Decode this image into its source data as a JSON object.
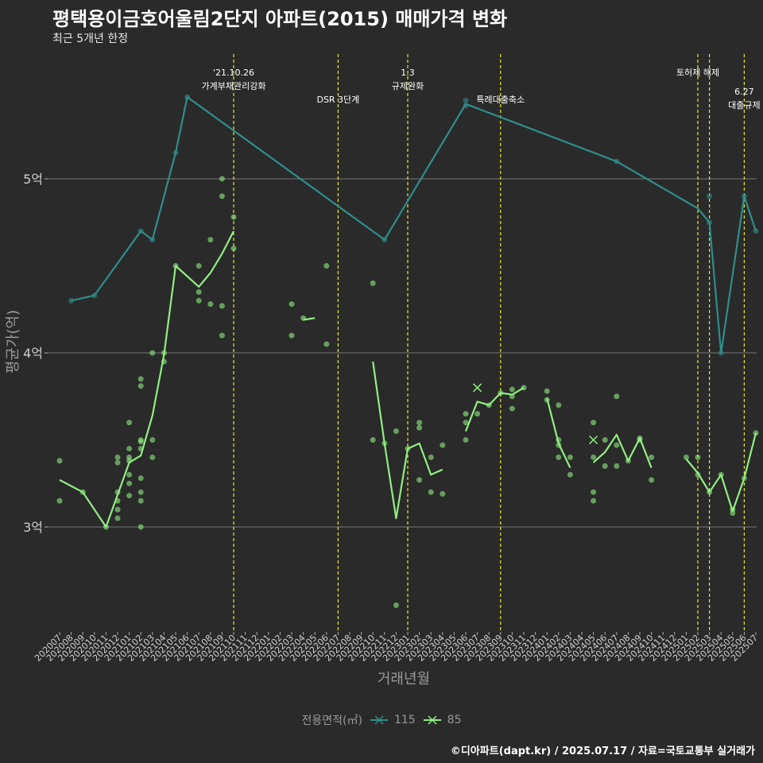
{
  "chart_data": {
    "type": "line",
    "title": "평택용이금호어울림2단지 아파트(2015) 매매가격 변화",
    "subtitle": "최근 5개년 한정",
    "xlabel": "거래년월",
    "ylabel": "평균가(억)",
    "caption": "©디아파트(dapt.kr) / 2025.07.17 / 자료=국토교통부 실거래가",
    "legend_title": "전용면적(㎡)",
    "grid": true,
    "categories": [
      "202007",
      "202008",
      "202009",
      "202010",
      "202011",
      "202012",
      "202101",
      "202102",
      "202103",
      "202104",
      "202105",
      "202106",
      "202107",
      "202108",
      "202109",
      "202110",
      "202111",
      "202112",
      "202201",
      "202202",
      "202203",
      "202204",
      "202205",
      "202206",
      "202207",
      "202208",
      "202209",
      "202210",
      "202211",
      "202212",
      "202301",
      "202302",
      "202303",
      "202304",
      "202305",
      "202306",
      "202307",
      "202308",
      "202309",
      "202310",
      "202311",
      "202312",
      "202401",
      "202402",
      "202403",
      "202404",
      "202405",
      "202406",
      "202407",
      "202408",
      "202409",
      "202410",
      "202411",
      "202412",
      "202501",
      "202502",
      "202503",
      "202504",
      "202505",
      "202506",
      "202507"
    ],
    "y_ticks": [
      {
        "value": 3,
        "label": "3억"
      },
      {
        "value": 4,
        "label": "4억"
      },
      {
        "value": 5,
        "label": "5억"
      }
    ],
    "ylim": [
      2.4,
      5.9
    ],
    "series": [
      {
        "name": "115",
        "color": "#2e8e8a",
        "line": [
          [
            "202008",
            4.3
          ],
          [
            "202010",
            4.33
          ],
          [
            "202102",
            4.7
          ],
          [
            "202103",
            4.65
          ],
          [
            "202105",
            5.15
          ],
          [
            "202106",
            5.47
          ],
          [
            "202211",
            4.65
          ],
          [
            "202306",
            5.43
          ],
          [
            "202407",
            5.1
          ],
          [
            "202502",
            4.83
          ],
          [
            "202503",
            4.75
          ],
          [
            "202504",
            4.0
          ],
          [
            "202506",
            4.9
          ],
          [
            "202507",
            4.7
          ]
        ],
        "points": [
          [
            "202008",
            4.3
          ],
          [
            "202010",
            4.33
          ],
          [
            "202102",
            4.7
          ],
          [
            "202103",
            4.65
          ],
          [
            "202105",
            5.15
          ],
          [
            "202106",
            5.47
          ],
          [
            "202211",
            4.65
          ],
          [
            "202306",
            5.45
          ],
          [
            "202306",
            5.42
          ],
          [
            "202407",
            5.1
          ],
          [
            "202503",
            4.9
          ],
          [
            "202503",
            4.75
          ],
          [
            "202504",
            4.0
          ],
          [
            "202506",
            4.9
          ],
          [
            "202507",
            4.7
          ]
        ]
      },
      {
        "name": "85",
        "color": "#90ee80",
        "line": [
          [
            "202007",
            3.27
          ],
          [
            "202009",
            3.2
          ],
          [
            "202011",
            3.0
          ],
          [
            "202101",
            3.37
          ],
          [
            "202102",
            3.41
          ],
          [
            "202103",
            3.64
          ],
          [
            "202104",
            3.99
          ],
          [
            "202105",
            4.5
          ],
          [
            "202107",
            4.38
          ],
          [
            "202108",
            4.46
          ],
          [
            "202109",
            4.57
          ],
          [
            "202110",
            4.7
          ],
          null,
          [
            "202204",
            4.19
          ],
          [
            "202205",
            4.2
          ],
          null,
          [
            "202210",
            3.95
          ],
          [
            "202211",
            3.48
          ],
          [
            "202212",
            3.05
          ],
          [
            "202301",
            3.45
          ],
          [
            "202302",
            3.48
          ],
          [
            "202303",
            3.3
          ],
          [
            "202304",
            3.33
          ],
          null,
          [
            "202306",
            3.55
          ],
          [
            "202307",
            3.72
          ],
          [
            "202308",
            3.7
          ],
          [
            "202309",
            3.77
          ],
          [
            "202310",
            3.76
          ],
          [
            "202311",
            3.8
          ],
          null,
          [
            "202401",
            3.74
          ],
          [
            "202402",
            3.48
          ],
          [
            "202403",
            3.34
          ],
          null,
          [
            "202405",
            3.37
          ],
          [
            "202406",
            3.43
          ],
          [
            "202407",
            3.53
          ],
          [
            "202408",
            3.38
          ],
          [
            "202409",
            3.51
          ],
          [
            "202410",
            3.34
          ],
          null,
          [
            "202501",
            3.39
          ],
          [
            "202502",
            3.31
          ],
          [
            "202503",
            3.2
          ],
          [
            "202504",
            3.3
          ],
          [
            "202505",
            3.09
          ],
          [
            "202506",
            3.28
          ],
          [
            "202507",
            3.54
          ]
        ],
        "points": [
          [
            "202007",
            3.38
          ],
          [
            "202007",
            3.15
          ],
          [
            "202009",
            3.2
          ],
          [
            "202011",
            3.0
          ],
          [
            "202012",
            3.05
          ],
          [
            "202012",
            3.1
          ],
          [
            "202012",
            3.15
          ],
          [
            "202012",
            3.2
          ],
          [
            "202012",
            3.37
          ],
          [
            "202012",
            3.4
          ],
          [
            "202101",
            3.6
          ],
          [
            "202101",
            3.45
          ],
          [
            "202101",
            3.4
          ],
          [
            "202101",
            3.38
          ],
          [
            "202101",
            3.3
          ],
          [
            "202101",
            3.25
          ],
          [
            "202101",
            3.18
          ],
          [
            "202102",
            3.85
          ],
          [
            "202102",
            3.81
          ],
          [
            "202102",
            3.5
          ],
          [
            "202102",
            3.49
          ],
          [
            "202102",
            3.45
          ],
          [
            "202102",
            3.28
          ],
          [
            "202102",
            3.2
          ],
          [
            "202102",
            3.15
          ],
          [
            "202102",
            3.0
          ],
          [
            "202103",
            4.0
          ],
          [
            "202103",
            3.5
          ],
          [
            "202103",
            3.4
          ],
          [
            "202104",
            4.0
          ],
          [
            "202104",
            3.95
          ],
          [
            "202105",
            4.5
          ],
          [
            "202107",
            4.5
          ],
          [
            "202107",
            4.35
          ],
          [
            "202107",
            4.3
          ],
          [
            "202108",
            4.65
          ],
          [
            "202108",
            4.28
          ],
          [
            "202109",
            5.0
          ],
          [
            "202109",
            4.9
          ],
          [
            "202109",
            4.27
          ],
          [
            "202109",
            4.1
          ],
          [
            "202110",
            4.78
          ],
          [
            "202110",
            4.6
          ],
          [
            "202203",
            4.28
          ],
          [
            "202203",
            4.1
          ],
          [
            "202204",
            4.2
          ],
          [
            "202206",
            4.5
          ],
          [
            "202206",
            4.05
          ],
          [
            "202210",
            4.4
          ],
          [
            "202210",
            3.5
          ],
          [
            "202211",
            3.48
          ],
          [
            "202212",
            3.55
          ],
          [
            "202212",
            2.55
          ],
          [
            "202301",
            3.45
          ],
          [
            "202302",
            3.6
          ],
          [
            "202302",
            3.57
          ],
          [
            "202302",
            3.27
          ],
          [
            "202303",
            3.4
          ],
          [
            "202303",
            3.2
          ],
          [
            "202304",
            3.47
          ],
          [
            "202304",
            3.19
          ],
          [
            "202306",
            3.65
          ],
          [
            "202306",
            3.6
          ],
          [
            "202306",
            3.5
          ],
          [
            "202307",
            3.65
          ],
          [
            "202308",
            3.7
          ],
          [
            "202309",
            3.77
          ],
          [
            "202310",
            3.79
          ],
          [
            "202310",
            3.75
          ],
          [
            "202310",
            3.68
          ],
          [
            "202311",
            3.8
          ],
          [
            "202401",
            3.78
          ],
          [
            "202401",
            3.73
          ],
          [
            "202402",
            3.7
          ],
          [
            "202402",
            3.5
          ],
          [
            "202402",
            3.47
          ],
          [
            "202402",
            3.4
          ],
          [
            "202403",
            3.4
          ],
          [
            "202403",
            3.3
          ],
          [
            "202405",
            3.6
          ],
          [
            "202405",
            3.4
          ],
          [
            "202405",
            3.2
          ],
          [
            "202405",
            3.15
          ],
          [
            "202406",
            3.5
          ],
          [
            "202406",
            3.35
          ],
          [
            "202407",
            3.75
          ],
          [
            "202407",
            3.47
          ],
          [
            "202407",
            3.35
          ],
          [
            "202408",
            3.38
          ],
          [
            "202409",
            3.51
          ],
          [
            "202409",
            3.5
          ],
          [
            "202410",
            3.4
          ],
          [
            "202410",
            3.27
          ],
          [
            "202501",
            3.4
          ],
          [
            "202502",
            3.4
          ],
          [
            "202502",
            3.3
          ],
          [
            "202503",
            3.2
          ],
          [
            "202504",
            3.3
          ],
          [
            "202505",
            3.1
          ],
          [
            "202505",
            3.08
          ],
          [
            "202506",
            3.28
          ],
          [
            "202507",
            3.54
          ]
        ],
        "crosses": [
          [
            "202307",
            3.8
          ],
          [
            "202405",
            3.5
          ]
        ]
      }
    ],
    "events": [
      {
        "x": "202110",
        "lines": [
          "'21.10.26",
          "가계부채관리강화"
        ],
        "level": 0
      },
      {
        "x": "202207",
        "lines": [
          "DSR 3단계"
        ],
        "level": 1
      },
      {
        "x": "202301",
        "lines": [
          "1.3",
          "규제완화"
        ],
        "level": 0
      },
      {
        "x": "202309",
        "lines": [
          "특례대출축소"
        ],
        "level": 1
      },
      {
        "x": "202502",
        "lines": [
          "토허제 해제"
        ],
        "level": 0
      },
      {
        "x": "202503",
        "lines": [],
        "level": 0
      },
      {
        "x": "202506",
        "lines": [
          "6.27",
          "대출규제"
        ],
        "level": 2
      }
    ]
  }
}
